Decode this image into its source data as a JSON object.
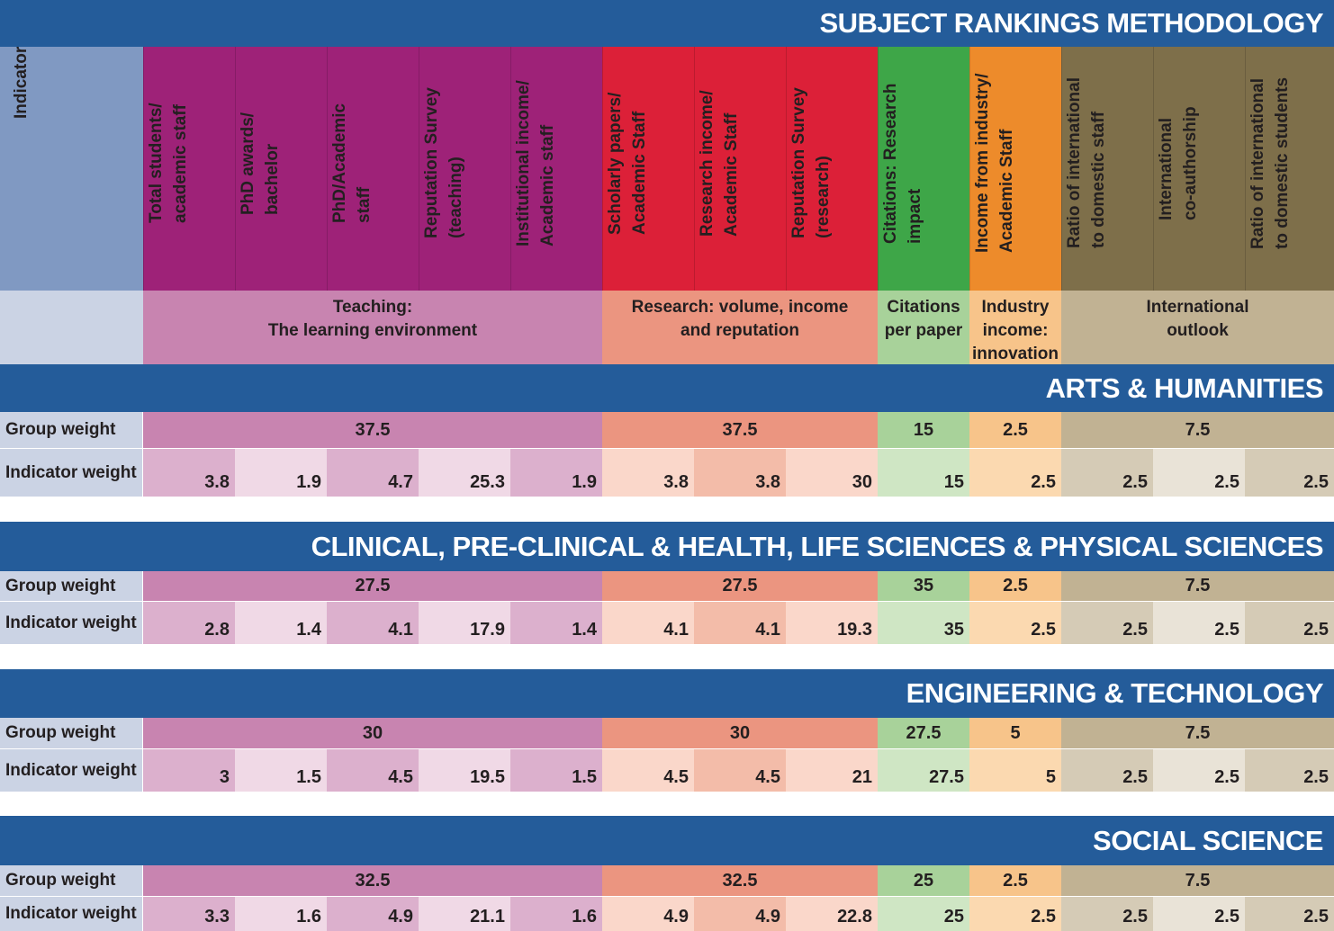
{
  "title": "SUBJECT RANKINGS METHODOLOGY",
  "header": {
    "indicator_label": "Indicator",
    "indicators": [
      "Total students/\nacademic staff",
      "PhD awards/\nbachelor",
      "PhD/Academic\nstaff",
      "Reputation Survey\n(teaching)",
      "Institutional income/\nAcademic staff",
      "Scholarly papers/\nAcademic Staff",
      "Research income/\nAcademic Staff",
      "Reputation Survey\n(research)",
      "Citations: Research\nimpact",
      "Income from industry/\nAcademic Staff",
      "Ratio of international\nto domestic staff",
      "International\nco-authorship",
      "Ratio of international\nto domestic students"
    ],
    "groups": [
      "Teaching:\nThe learning environment",
      "Research: volume, income\nand reputation",
      "Citations\nper paper",
      "Industry\nincome:\ninnovation",
      "International\noutlook"
    ]
  },
  "sections": [
    {
      "title": "ARTS & HUMANITIES",
      "group_weight_label": "Group weight",
      "indicator_weight_label": "Indicator weight",
      "group_weights": [
        37.5,
        37.5,
        15,
        2.5,
        7.5
      ],
      "indicator_weights": [
        3.8,
        1.9,
        4.7,
        25.3,
        1.9,
        3.8,
        3.8,
        30,
        15,
        2.5,
        2.5,
        2.5,
        2.5
      ]
    },
    {
      "title": "CLINICAL, PRE-CLINICAL & HEALTH, LIFE SCIENCES & PHYSICAL SCIENCES",
      "group_weight_label": "Group weight",
      "indicator_weight_label": "Indicator weight",
      "group_weights": [
        27.5,
        27.5,
        35,
        2.5,
        7.5
      ],
      "indicator_weights": [
        2.8,
        1.4,
        4.1,
        17.9,
        1.4,
        4.1,
        4.1,
        19.3,
        35,
        2.5,
        2.5,
        2.5,
        2.5
      ]
    },
    {
      "title": "ENGINEERING & TECHNOLOGY",
      "group_weight_label": "Group weight",
      "indicator_weight_label": "Indicator weight",
      "group_weights": [
        30,
        30,
        27.5,
        5,
        7.5
      ],
      "indicator_weights": [
        3,
        1.5,
        4.5,
        19.5,
        1.5,
        4.5,
        4.5,
        21,
        27.5,
        5,
        2.5,
        2.5,
        2.5
      ]
    },
    {
      "title": "SOCIAL SCIENCE",
      "group_weight_label": "Group weight",
      "indicator_weight_label": "Indicator weight",
      "group_weights": [
        32.5,
        32.5,
        25,
        2.5,
        7.5
      ],
      "indicator_weights": [
        3.3,
        1.6,
        4.9,
        21.1,
        1.6,
        4.9,
        4.9,
        22.8,
        25,
        2.5,
        2.5,
        2.5,
        2.5
      ]
    }
  ]
}
